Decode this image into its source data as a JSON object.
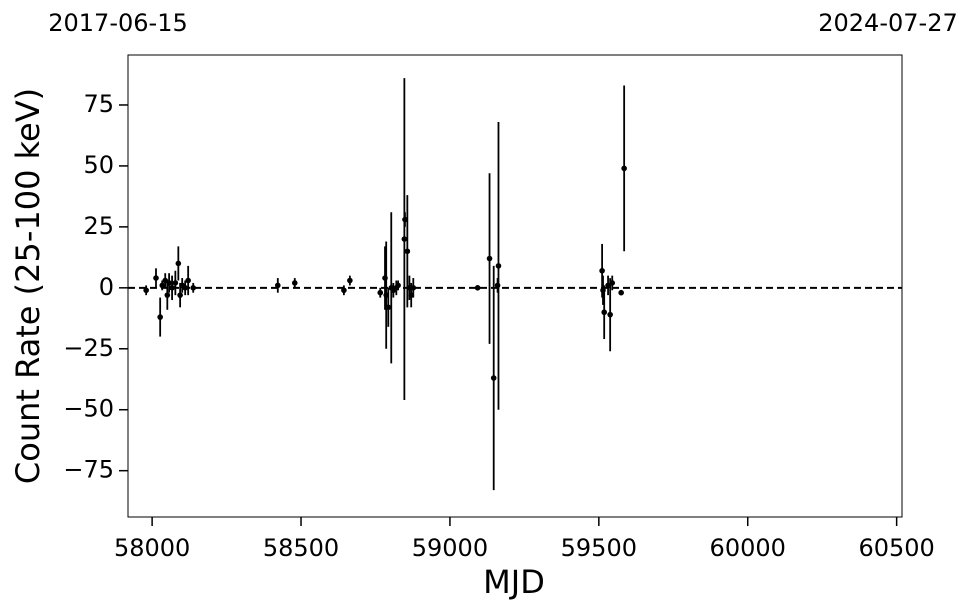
{
  "chart_data": {
    "type": "scatter",
    "top_labels": [
      "2017-06-15",
      "2024-07-27"
    ],
    "x_label": "MJD",
    "y_label": "Count Rate (25-100 keV)",
    "xlim": [
      57919,
      60518
    ],
    "ylim": [
      -94,
      95.5
    ],
    "xticks": [
      58000,
      58500,
      59000,
      59500,
      60000,
      60500
    ],
    "yticks": [
      {
        "value": -75,
        "label": "−75"
      },
      {
        "value": -50,
        "label": "−50"
      },
      {
        "value": -25,
        "label": "−25"
      },
      0,
      25,
      50,
      75
    ],
    "hline": 0,
    "series": [
      {
        "color": "#000000",
        "x": [
          57980,
          58013,
          58027,
          58034,
          58044,
          58051,
          58057,
          58067,
          58078,
          58088,
          58094,
          58101,
          58111,
          58121,
          58138,
          58422,
          58479,
          58644,
          58664,
          58766,
          58782,
          58786,
          58793,
          58803,
          58810,
          58820,
          58826,
          58847,
          58849,
          58857,
          58864,
          58870,
          58877,
          59093,
          59133,
          59147,
          59160,
          59163,
          59511,
          59514,
          59518,
          59531,
          59538,
          59545,
          59575,
          59585
        ],
        "values": [
          -1,
          4,
          -12,
          1,
          3,
          -3,
          2,
          0,
          2,
          10,
          -3,
          1,
          0,
          3,
          0,
          1,
          2,
          -1,
          3,
          -2,
          4,
          -3,
          -8,
          0,
          -1,
          0,
          1,
          20,
          28,
          15,
          0,
          -3,
          0,
          0,
          12,
          -37,
          1,
          9,
          7,
          -1,
          -10,
          1,
          -11,
          2,
          -2,
          49
        ],
        "errors": [
          2,
          4,
          8,
          2,
          3,
          6,
          4,
          5,
          5,
          7,
          5,
          3,
          3,
          6,
          2,
          3,
          2,
          2,
          2,
          2,
          13,
          22,
          8,
          31,
          3,
          3,
          2,
          66,
          3,
          23,
          5,
          5,
          4,
          1,
          35,
          46,
          3,
          59,
          11,
          6,
          11,
          4,
          15,
          3,
          1,
          34
        ]
      }
    ]
  }
}
